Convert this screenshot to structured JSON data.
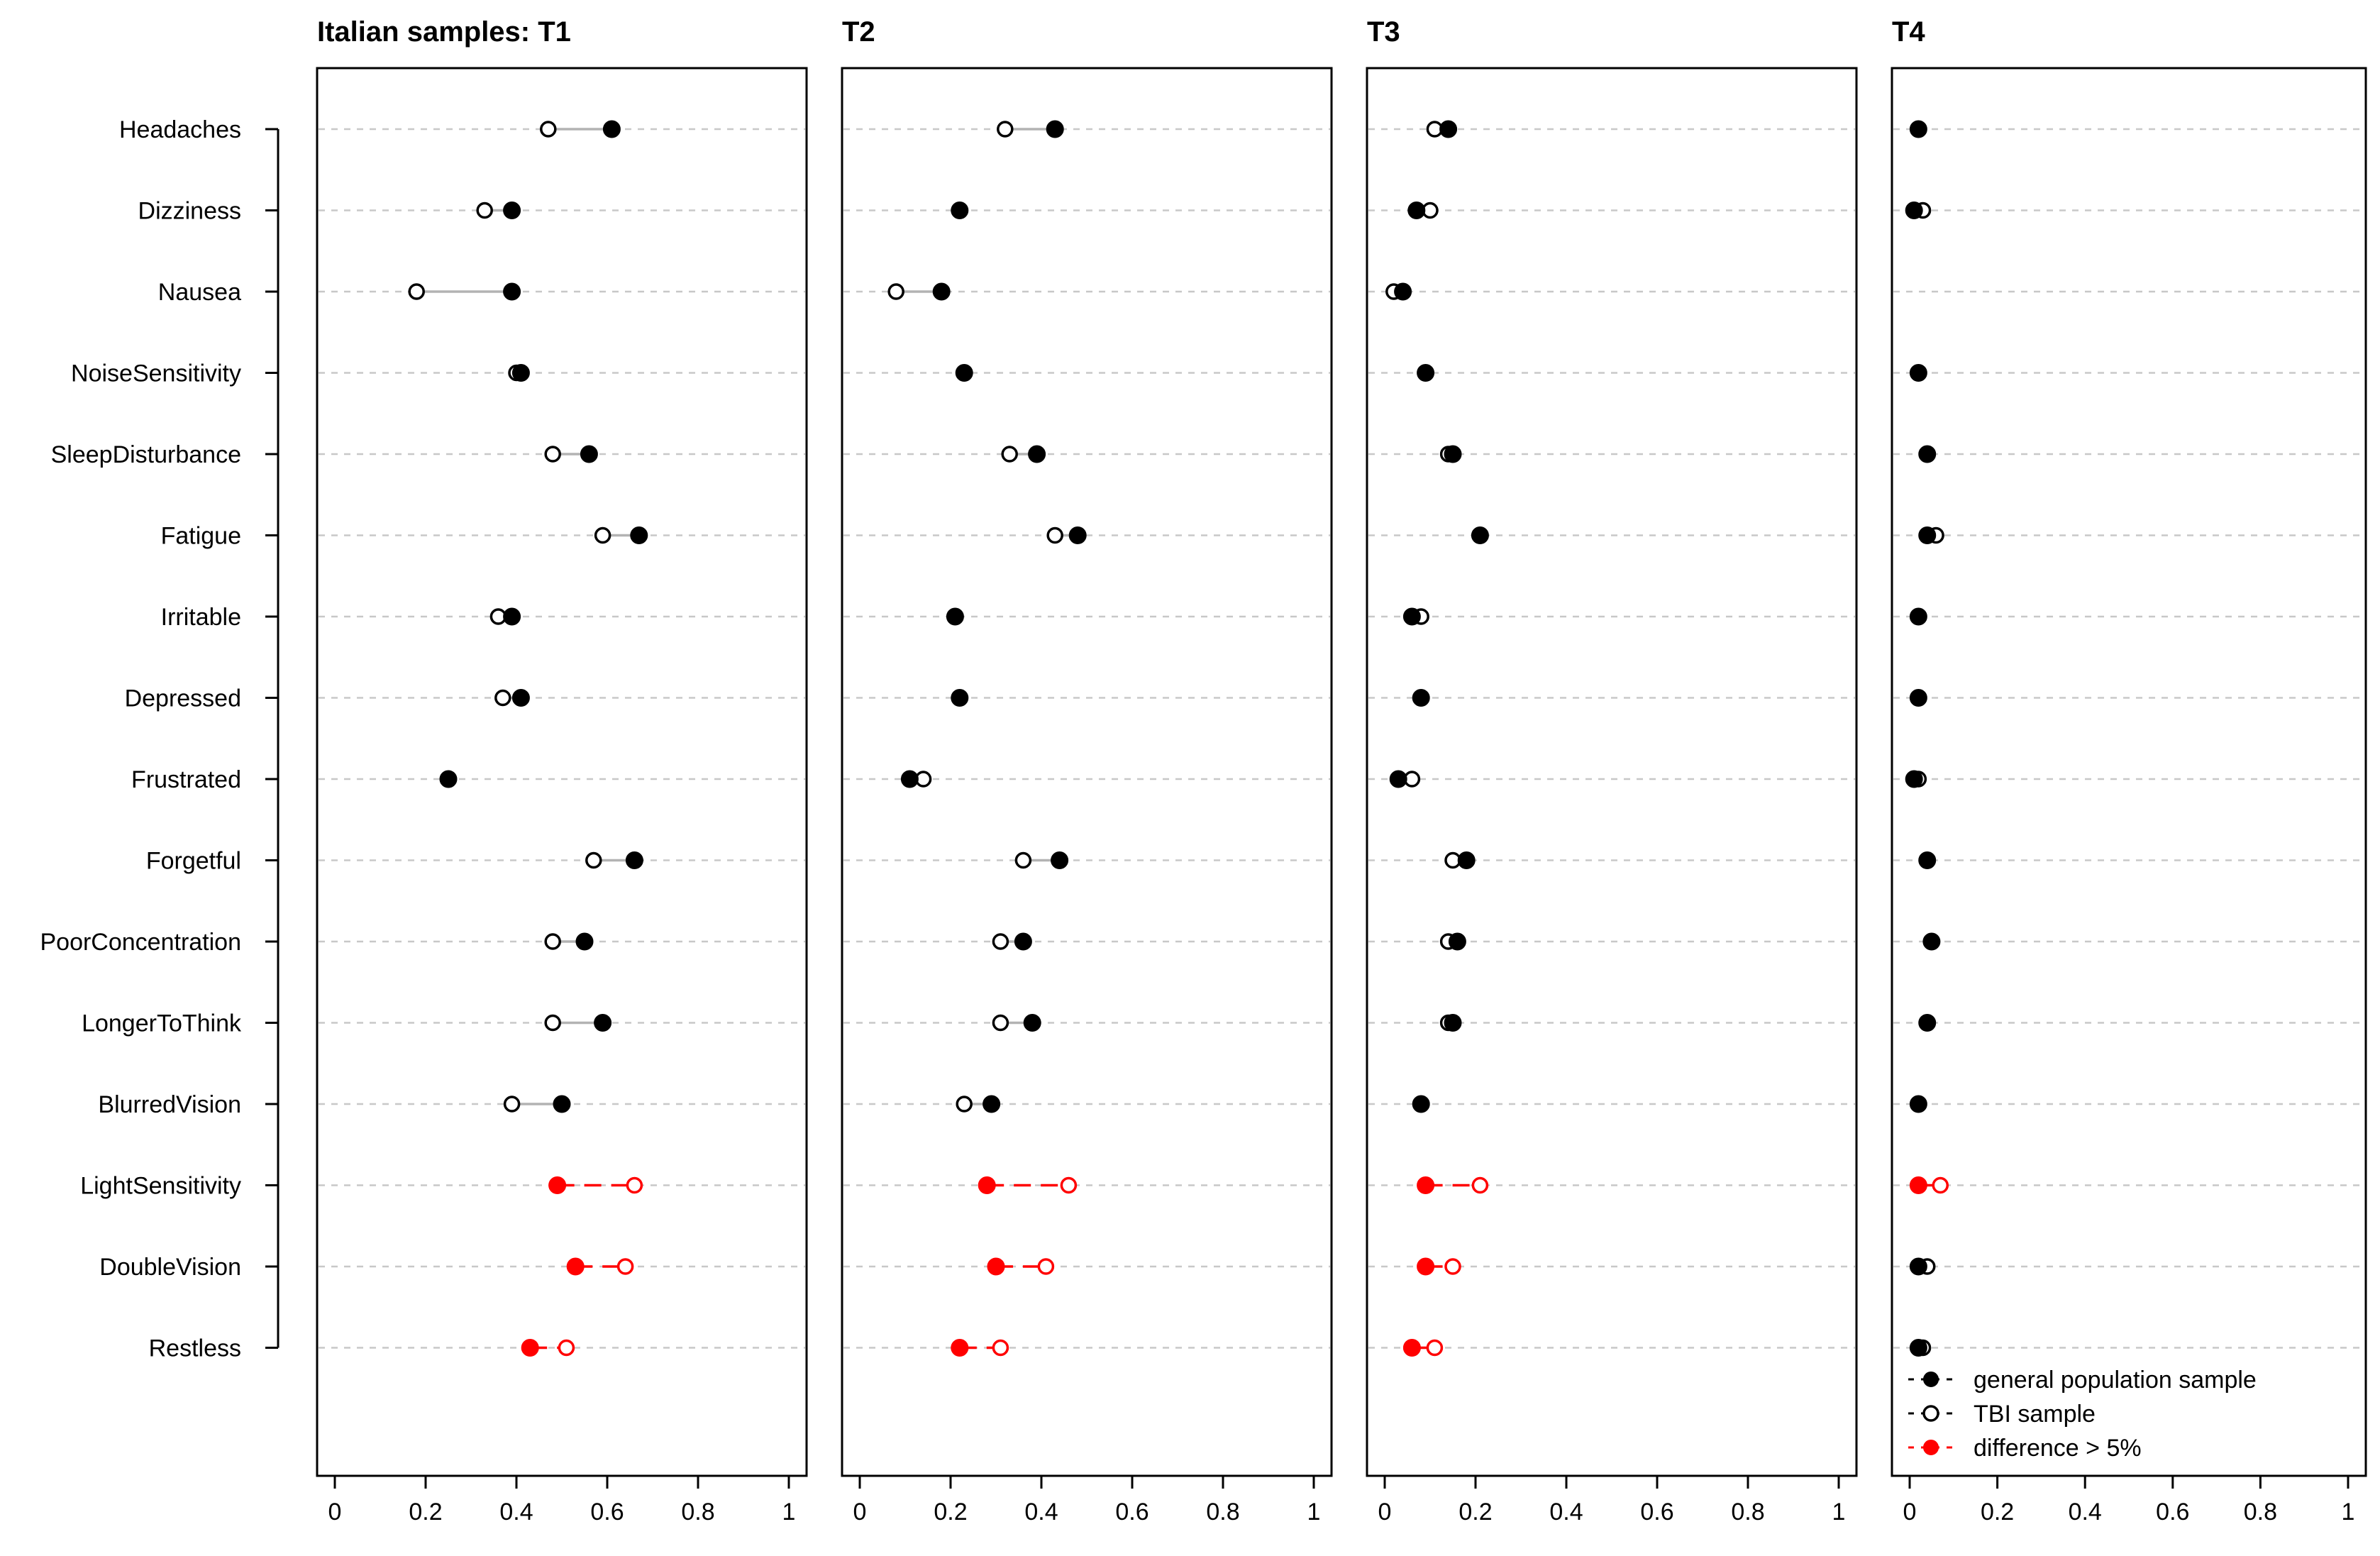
{
  "chart_data": {
    "type": "dot",
    "title": "Italian samples: T1",
    "categories": [
      "Headaches",
      "Dizziness",
      "Nausea",
      "NoiseSensitivity",
      "SleepDisturbance",
      "Fatigue",
      "Irritable",
      "Depressed",
      "Frustrated",
      "Forgetful",
      "PoorConcentration",
      "LongerToThink",
      "BlurredVision",
      "LightSensitivity",
      "DoubleVision",
      "Restless"
    ],
    "xlim": [
      0,
      1
    ],
    "x_ticks": [
      "0",
      "0.2",
      "0.4",
      "0.6",
      "0.8",
      "1"
    ],
    "grid": true,
    "legend": {
      "position": "bottom-right",
      "entries": [
        {
          "label": "general population sample",
          "marker": "filled",
          "color": "#000000"
        },
        {
          "label": "TBI sample",
          "marker": "open",
          "color": "#000000"
        },
        {
          "label": "difference > 5%",
          "marker": "filled",
          "color": "#ff0000"
        }
      ]
    },
    "colors": {
      "normal": "#000000",
      "highlight": "#ff0000",
      "connector": "#b3b3b3",
      "grid": "#c8c8c8"
    },
    "panels": [
      {
        "title": "T1",
        "series": [
          {
            "name": "general population sample",
            "values": [
              0.61,
              0.39,
              0.39,
              0.41,
              0.56,
              0.67,
              0.39,
              0.41,
              0.25,
              0.66,
              0.55,
              0.59,
              0.5,
              0.49,
              0.53,
              0.43
            ]
          },
          {
            "name": "TBI sample",
            "values": [
              0.47,
              0.33,
              0.18,
              0.4,
              0.48,
              0.59,
              0.36,
              0.37,
              0.25,
              0.57,
              0.48,
              0.48,
              0.39,
              0.66,
              0.64,
              0.51
            ]
          }
        ],
        "highlight": [
          false,
          false,
          false,
          false,
          false,
          false,
          false,
          false,
          false,
          false,
          false,
          false,
          false,
          true,
          true,
          true
        ]
      },
      {
        "title": "T2",
        "series": [
          {
            "name": "general population sample",
            "values": [
              0.43,
              0.22,
              0.18,
              0.23,
              0.39,
              0.48,
              0.21,
              0.22,
              0.11,
              0.44,
              0.36,
              0.38,
              0.29,
              0.28,
              0.3,
              0.22
            ]
          },
          {
            "name": "TBI sample",
            "values": [
              0.32,
              0.22,
              0.08,
              0.23,
              0.33,
              0.43,
              0.21,
              0.22,
              0.14,
              0.36,
              0.31,
              0.31,
              0.23,
              0.46,
              0.41,
              0.31
            ]
          }
        ],
        "highlight": [
          false,
          false,
          false,
          false,
          false,
          false,
          false,
          false,
          false,
          false,
          false,
          false,
          false,
          true,
          true,
          true
        ]
      },
      {
        "title": "T3",
        "series": [
          {
            "name": "general population sample",
            "values": [
              0.14,
              0.07,
              0.04,
              0.09,
              0.15,
              0.21,
              0.06,
              0.08,
              0.03,
              0.18,
              0.16,
              0.15,
              0.08,
              0.09,
              0.09,
              0.06
            ]
          },
          {
            "name": "TBI sample",
            "values": [
              0.11,
              0.1,
              0.02,
              0.09,
              0.14,
              0.21,
              0.08,
              0.08,
              0.06,
              0.15,
              0.14,
              0.14,
              0.08,
              0.21,
              0.15,
              0.11
            ]
          }
        ],
        "highlight": [
          false,
          false,
          false,
          false,
          false,
          false,
          false,
          false,
          false,
          false,
          false,
          false,
          false,
          true,
          true,
          true
        ]
      },
      {
        "title": "T4",
        "series": [
          {
            "name": "general population sample",
            "values": [
              0.02,
              0.01,
              null,
              0.02,
              0.04,
              0.04,
              0.02,
              0.02,
              0.01,
              0.04,
              0.05,
              0.04,
              0.02,
              0.02,
              0.02,
              0.02
            ]
          },
          {
            "name": "TBI sample",
            "values": [
              0.02,
              0.03,
              null,
              0.02,
              0.04,
              0.06,
              0.02,
              0.02,
              0.02,
              0.04,
              0.05,
              0.04,
              0.02,
              0.07,
              0.04,
              0.03
            ]
          }
        ],
        "highlight": [
          false,
          false,
          false,
          false,
          false,
          false,
          false,
          false,
          false,
          false,
          false,
          false,
          false,
          true,
          false,
          false
        ]
      }
    ]
  }
}
